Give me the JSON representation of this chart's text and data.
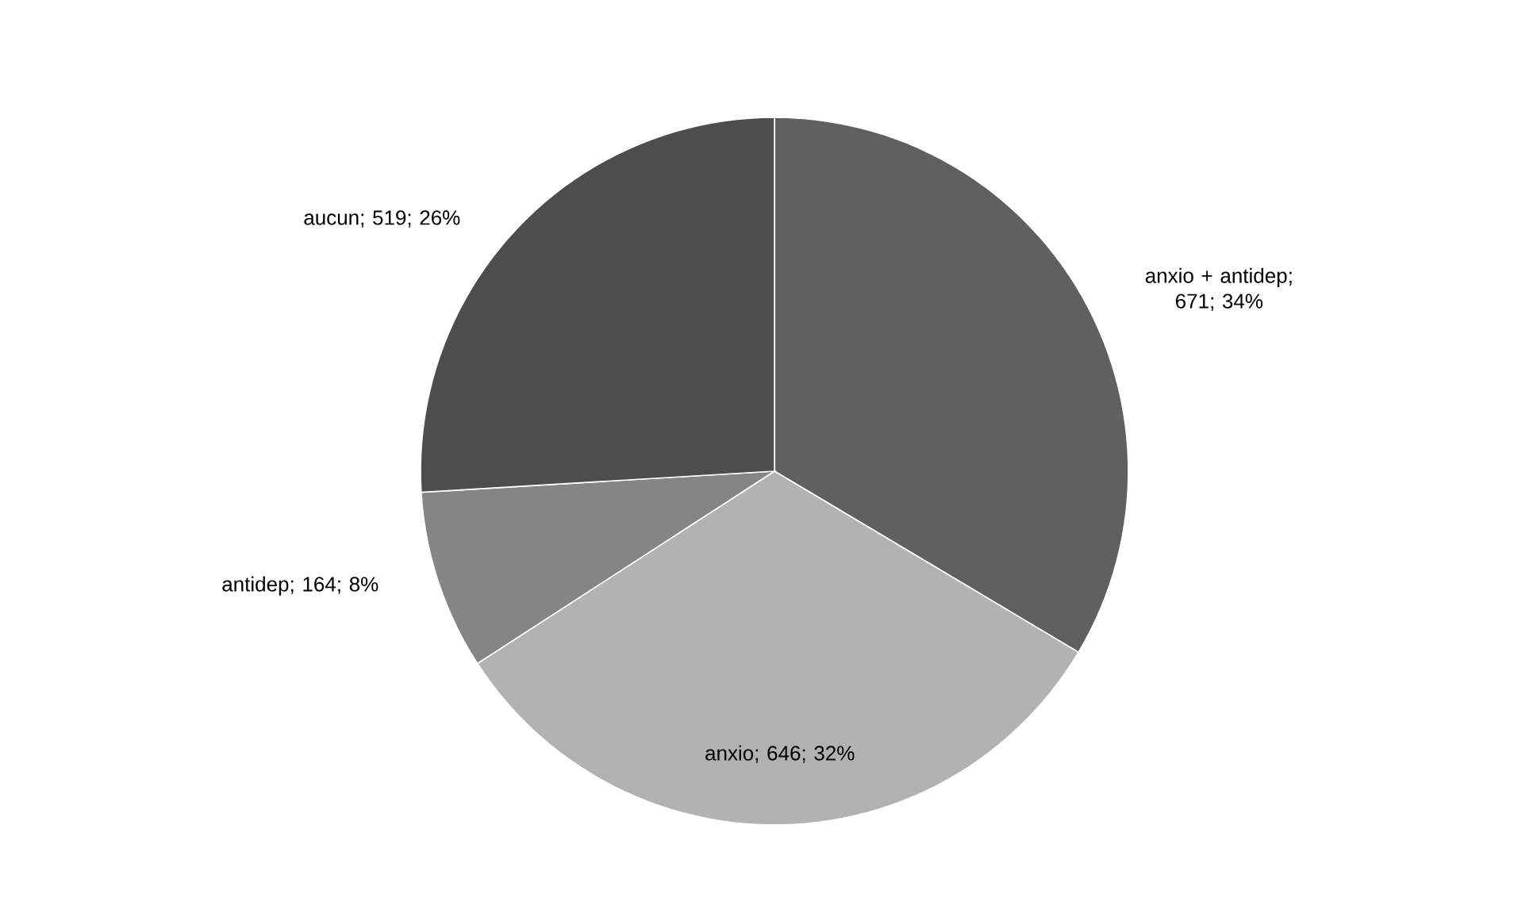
{
  "chart_data": {
    "type": "pie",
    "categories": [
      "anxio + antidep",
      "anxio",
      "antidep",
      "aucun"
    ],
    "values": [
      671,
      646,
      164,
      519
    ],
    "value_labels": [
      "; 671; 34%",
      "; 646; 32%",
      "; 164; 8%",
      "; 519; 26%"
    ],
    "colors": [
      "#606060",
      "#b2b2b2",
      "#858585",
      "#4d4d4d"
    ]
  }
}
